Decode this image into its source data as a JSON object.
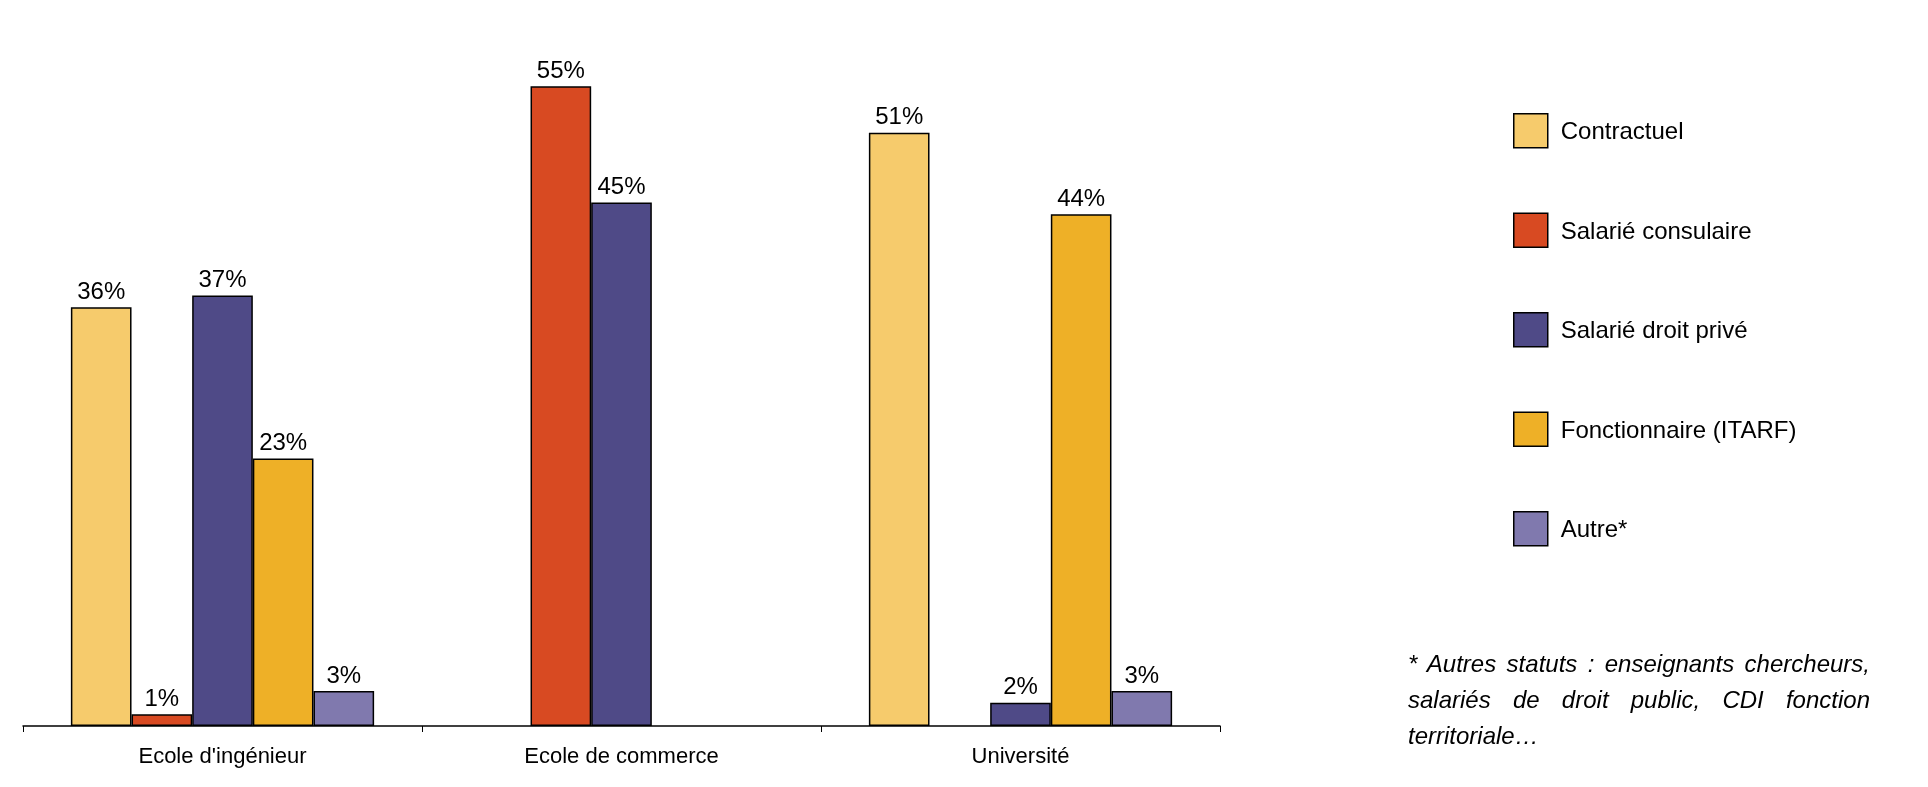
{
  "chart_data": {
    "type": "bar",
    "categories": [
      "Ecole d'ingénieur",
      "Ecole de commerce",
      "Université"
    ],
    "series": [
      {
        "name": "Contractuel",
        "color": "#f6cb6c",
        "values": [
          36,
          null,
          51
        ],
        "value_labels": [
          "36%",
          null,
          "51%"
        ]
      },
      {
        "name": "Salarié consulaire",
        "color": "#d84a22",
        "values": [
          1,
          55,
          null
        ],
        "value_labels": [
          "1%",
          "55%",
          null
        ]
      },
      {
        "name": "Salarié droit privé",
        "color": "#4f4a87",
        "values": [
          37,
          45,
          2
        ],
        "value_labels": [
          "37%",
          "45%",
          "2%"
        ]
      },
      {
        "name": "Fonctionnaire (ITARF)",
        "color": "#eeb027",
        "values": [
          23,
          null,
          44
        ],
        "value_labels": [
          "23%",
          null,
          "44%"
        ]
      },
      {
        "name": "Autre*",
        "color": "#8079ae",
        "values": [
          3,
          null,
          3
        ],
        "value_labels": [
          "3%",
          null,
          "3%"
        ]
      }
    ],
    "annotations": [
      "* Autres statuts : enseignants chercheurs, salariés de droit public, CDI fonction territoriale…"
    ],
    "legend": "right"
  }
}
